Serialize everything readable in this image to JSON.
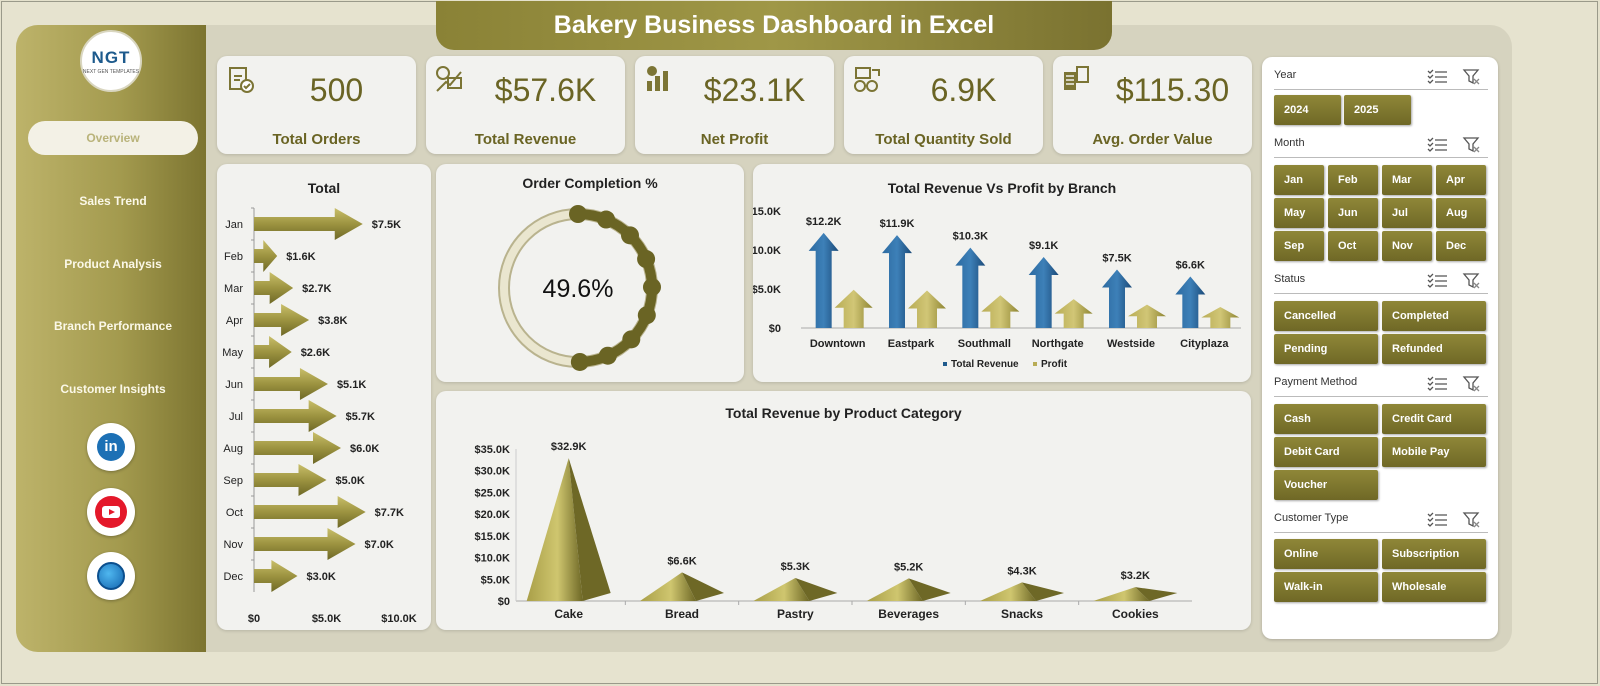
{
  "title": "Bakery Business Dashboard in Excel",
  "logo": {
    "text": "NGT",
    "sub": "NEXT GEN TEMPLATES"
  },
  "nav": [
    {
      "label": "Overview",
      "active": true
    },
    {
      "label": "Sales Trend",
      "active": false
    },
    {
      "label": "Product Analysis",
      "active": false
    },
    {
      "label": "Branch Performance",
      "active": false
    },
    {
      "label": "Customer Insights",
      "active": false
    }
  ],
  "social": {
    "linkedin": "in",
    "icons": [
      "linkedin-icon",
      "youtube-icon",
      "website-icon"
    ]
  },
  "kpis": [
    {
      "value": "500",
      "label": "Total Orders",
      "icon": "clipboard-check-icon"
    },
    {
      "value": "$57.6K",
      "label": "Total Revenue",
      "icon": "money-growth-icon"
    },
    {
      "value": "$23.1K",
      "label": "Net Profit",
      "icon": "profit-chart-icon"
    },
    {
      "value": "6.9K",
      "label": "Total Quantity Sold",
      "icon": "coins-scale-icon"
    },
    {
      "value": "$115.30",
      "label": "Avg. Order Value",
      "icon": "receipt-calculator-icon"
    }
  ],
  "colors": {
    "olive": "#8a8236",
    "dark_olive": "#6a6424",
    "blue": "#1f5a8c",
    "gold": "#b8ac55"
  },
  "chart_data": [
    {
      "type": "bar",
      "orientation": "horizontal",
      "title": "Total",
      "categories": [
        "Jan",
        "Feb",
        "Mar",
        "Apr",
        "May",
        "Jun",
        "Jul",
        "Aug",
        "Sep",
        "Oct",
        "Nov",
        "Dec"
      ],
      "values": [
        7500,
        1600,
        2700,
        3800,
        2600,
        5100,
        5700,
        6000,
        5000,
        7700,
        7000,
        3000
      ],
      "labels": [
        "$7.5K",
        "$1.6K",
        "$2.7K",
        "$3.8K",
        "$2.6K",
        "$5.1K",
        "$5.7K",
        "$6.0K",
        "$5.0K",
        "$7.7K",
        "$7.0K",
        "$3.0K"
      ],
      "xticks": [
        "$0",
        "$5.0K",
        "$10.0K"
      ],
      "xlim": [
        0,
        10000
      ]
    },
    {
      "type": "pie",
      "title": "Order Completion %",
      "value": 49.6,
      "label": "49.6%"
    },
    {
      "type": "bar",
      "title": "Total Revenue  Vs Profit by Branch",
      "categories": [
        "Downtown",
        "Eastpark",
        "Southmall",
        "Northgate",
        "Westside",
        "Cityplaza"
      ],
      "series": [
        {
          "name": "Total Revenue",
          "values": [
            12200,
            11900,
            10300,
            9100,
            7500,
            6600
          ],
          "labels": [
            "$12.2K",
            "$11.9K",
            "$10.3K",
            "$9.1K",
            "$7.5K",
            "$6.6K"
          ]
        },
        {
          "name": "Profit",
          "values": [
            4900,
            4800,
            4200,
            3700,
            3000,
            2700
          ]
        }
      ],
      "yticks": [
        "$0",
        "$5.0K",
        "$10.0K",
        "$15.0K"
      ],
      "ylim": [
        0,
        15000
      ],
      "legend": "bottom"
    },
    {
      "type": "bar",
      "title": "Total Revenue  by Product Category",
      "categories": [
        "Cake",
        "Bread",
        "Pastry",
        "Beverages",
        "Snacks",
        "Cookies"
      ],
      "values": [
        32900,
        6600,
        5300,
        5200,
        4300,
        3200
      ],
      "labels": [
        "$32.9K",
        "$6.6K",
        "$5.3K",
        "$5.2K",
        "$4.3K",
        "$3.2K"
      ],
      "yticks": [
        "$0",
        "$5.0K",
        "$10.0K",
        "$15.0K",
        "$20.0K",
        "$25.0K",
        "$30.0K",
        "$35.0K"
      ],
      "ylim": [
        0,
        35000
      ]
    }
  ],
  "filters": [
    {
      "title": "Year",
      "items": [
        "2024",
        "2025"
      ]
    },
    {
      "title": "Month",
      "items": [
        "Jan",
        "Feb",
        "Mar",
        "Apr",
        "May",
        "Jun",
        "Jul",
        "Aug",
        "Sep",
        "Oct",
        "Nov",
        "Dec"
      ]
    },
    {
      "title": "Status",
      "items": [
        "Cancelled",
        "Completed",
        "Pending",
        "Refunded"
      ]
    },
    {
      "title": "Payment Method",
      "items": [
        "Cash",
        "Credit Card",
        "Debit Card",
        "Mobile Pay",
        "Voucher"
      ]
    },
    {
      "title": "Customer Type",
      "items": [
        "Online",
        "Subscription",
        "Walk-in",
        "Wholesale"
      ]
    }
  ]
}
